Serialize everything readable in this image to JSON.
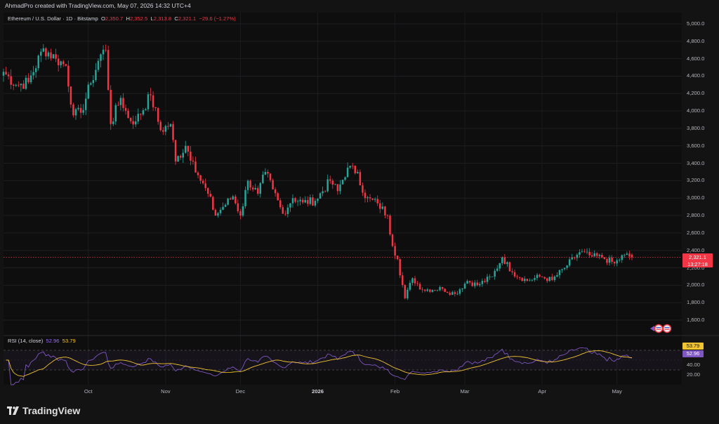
{
  "header": {
    "credit": "AhmadPro created with TradingView.com, May 07, 2026 14:32 UTC+4"
  },
  "legend": {
    "symbol": "Ethereum / U.S. Dollar · 1D · Bitstamp",
    "open_key": "O",
    "open": "2,350.7",
    "high_key": "H",
    "high": "2,352.5",
    "low_key": "L",
    "low": "2,313.8",
    "close_key": "C",
    "close": "2,321.1",
    "change": "−29.6 (−1.27%)"
  },
  "rsi_legend": {
    "name": "RSI (14, close)",
    "rsi_value": "52.96",
    "ma_value": "53.79"
  },
  "price_tag": {
    "price": "2,321.1",
    "countdown": "13:27:18"
  },
  "rsi_tags": {
    "ma": "53.79",
    "rsi": "52.96"
  },
  "y_ticks": [
    "5,000.0",
    "4,800.0",
    "4,600.0",
    "4,400.0",
    "4,200.0",
    "4,000.0",
    "3,800.0",
    "3,600.0",
    "3,400.0",
    "3,200.0",
    "3,000.0",
    "2,800.0",
    "2,600.0",
    "2,400.0",
    "2,200.0",
    "2,000.0",
    "1,800.0",
    "1,600.0"
  ],
  "rsi_ticks": [
    "40.00",
    "20.00"
  ],
  "x_ticks": [
    {
      "label": "Oct"
    },
    {
      "label": "Nov"
    },
    {
      "label": "Dec"
    },
    {
      "label": "2026",
      "bold": true
    },
    {
      "label": "Feb"
    },
    {
      "label": "Mar"
    },
    {
      "label": "Apr"
    },
    {
      "label": "May"
    }
  ],
  "footer": {
    "brand": "TradingView"
  },
  "colors": {
    "up": "#26a69a",
    "down": "#f23645",
    "rsi": "#7e57c2",
    "rsi_ma": "#f0c330",
    "background": "#0e0e0e"
  },
  "chart_data": {
    "type": "candlestick",
    "title": "Ethereum / U.S. Dollar · 1D · Bitstamp",
    "ylim": [
      1500,
      5080
    ],
    "x_range": [
      "2025-08-28",
      "2026-05-27"
    ],
    "price_anchors": [
      {
        "date": "2025-08-28",
        "close": 4450
      },
      {
        "date": "2025-09-02",
        "close": 4300
      },
      {
        "date": "2025-09-07",
        "close": 4330
      },
      {
        "date": "2025-09-13",
        "close": 4720
      },
      {
        "date": "2025-09-18",
        "close": 4600
      },
      {
        "date": "2025-09-22",
        "close": 4520
      },
      {
        "date": "2025-09-25",
        "close": 3950
      },
      {
        "date": "2025-09-28",
        "close": 3980
      },
      {
        "date": "2025-10-02",
        "close": 4320
      },
      {
        "date": "2025-10-06",
        "close": 4650
      },
      {
        "date": "2025-10-08",
        "close": 4700
      },
      {
        "date": "2025-10-10",
        "close": 3850
      },
      {
        "date": "2025-10-14",
        "close": 4150
      },
      {
        "date": "2025-10-17",
        "close": 3920
      },
      {
        "date": "2025-10-20",
        "close": 3880
      },
      {
        "date": "2025-10-26",
        "close": 4180
      },
      {
        "date": "2025-10-30",
        "close": 3780
      },
      {
        "date": "2025-11-03",
        "close": 3850
      },
      {
        "date": "2025-11-05",
        "close": 3420
      },
      {
        "date": "2025-11-09",
        "close": 3600
      },
      {
        "date": "2025-11-12",
        "close": 3420
      },
      {
        "date": "2025-11-15",
        "close": 3200
      },
      {
        "date": "2025-11-18",
        "close": 3050
      },
      {
        "date": "2025-11-21",
        "close": 2800
      },
      {
        "date": "2025-11-24",
        "close": 2900
      },
      {
        "date": "2025-11-28",
        "close": 3020
      },
      {
        "date": "2025-12-01",
        "close": 2800
      },
      {
        "date": "2025-12-04",
        "close": 3200
      },
      {
        "date": "2025-12-08",
        "close": 3050
      },
      {
        "date": "2025-12-11",
        "close": 3300
      },
      {
        "date": "2025-12-14",
        "close": 3100
      },
      {
        "date": "2025-12-18",
        "close": 2820
      },
      {
        "date": "2025-12-22",
        "close": 3000
      },
      {
        "date": "2025-12-26",
        "close": 2950
      },
      {
        "date": "2025-12-31",
        "close": 2970
      },
      {
        "date": "2026-01-06",
        "close": 3200
      },
      {
        "date": "2026-01-09",
        "close": 3080
      },
      {
        "date": "2026-01-13",
        "close": 3350
      },
      {
        "date": "2026-01-17",
        "close": 3300
      },
      {
        "date": "2026-01-20",
        "close": 3000
      },
      {
        "date": "2026-01-25",
        "close": 2940
      },
      {
        "date": "2026-01-29",
        "close": 2800
      },
      {
        "date": "2026-01-31",
        "close": 2450
      },
      {
        "date": "2026-02-02",
        "close": 2300
      },
      {
        "date": "2026-02-05",
        "close": 1850
      },
      {
        "date": "2026-02-08",
        "close": 2080
      },
      {
        "date": "2026-02-12",
        "close": 1950
      },
      {
        "date": "2026-02-20",
        "close": 1960
      },
      {
        "date": "2026-02-25",
        "close": 1900
      },
      {
        "date": "2026-03-02",
        "close": 2050
      },
      {
        "date": "2026-03-06",
        "close": 2000
      },
      {
        "date": "2026-03-12",
        "close": 2100
      },
      {
        "date": "2026-03-16",
        "close": 2320
      },
      {
        "date": "2026-03-20",
        "close": 2150
      },
      {
        "date": "2026-03-26",
        "close": 2050
      },
      {
        "date": "2026-03-31",
        "close": 2100
      },
      {
        "date": "2026-04-05",
        "close": 2060
      },
      {
        "date": "2026-04-10",
        "close": 2200
      },
      {
        "date": "2026-04-16",
        "close": 2380
      },
      {
        "date": "2026-04-21",
        "close": 2330
      },
      {
        "date": "2026-04-25",
        "close": 2320
      },
      {
        "date": "2026-04-30",
        "close": 2250
      },
      {
        "date": "2026-05-04",
        "close": 2350
      },
      {
        "date": "2026-05-07",
        "close": 2321.1
      }
    ],
    "last": {
      "open": 2350.7,
      "high": 2352.5,
      "low": 2313.8,
      "close": 2321.1
    },
    "rsi": {
      "length": 14,
      "source": "close",
      "value": 52.96,
      "ma": 53.79,
      "bands": [
        70,
        30
      ]
    }
  }
}
